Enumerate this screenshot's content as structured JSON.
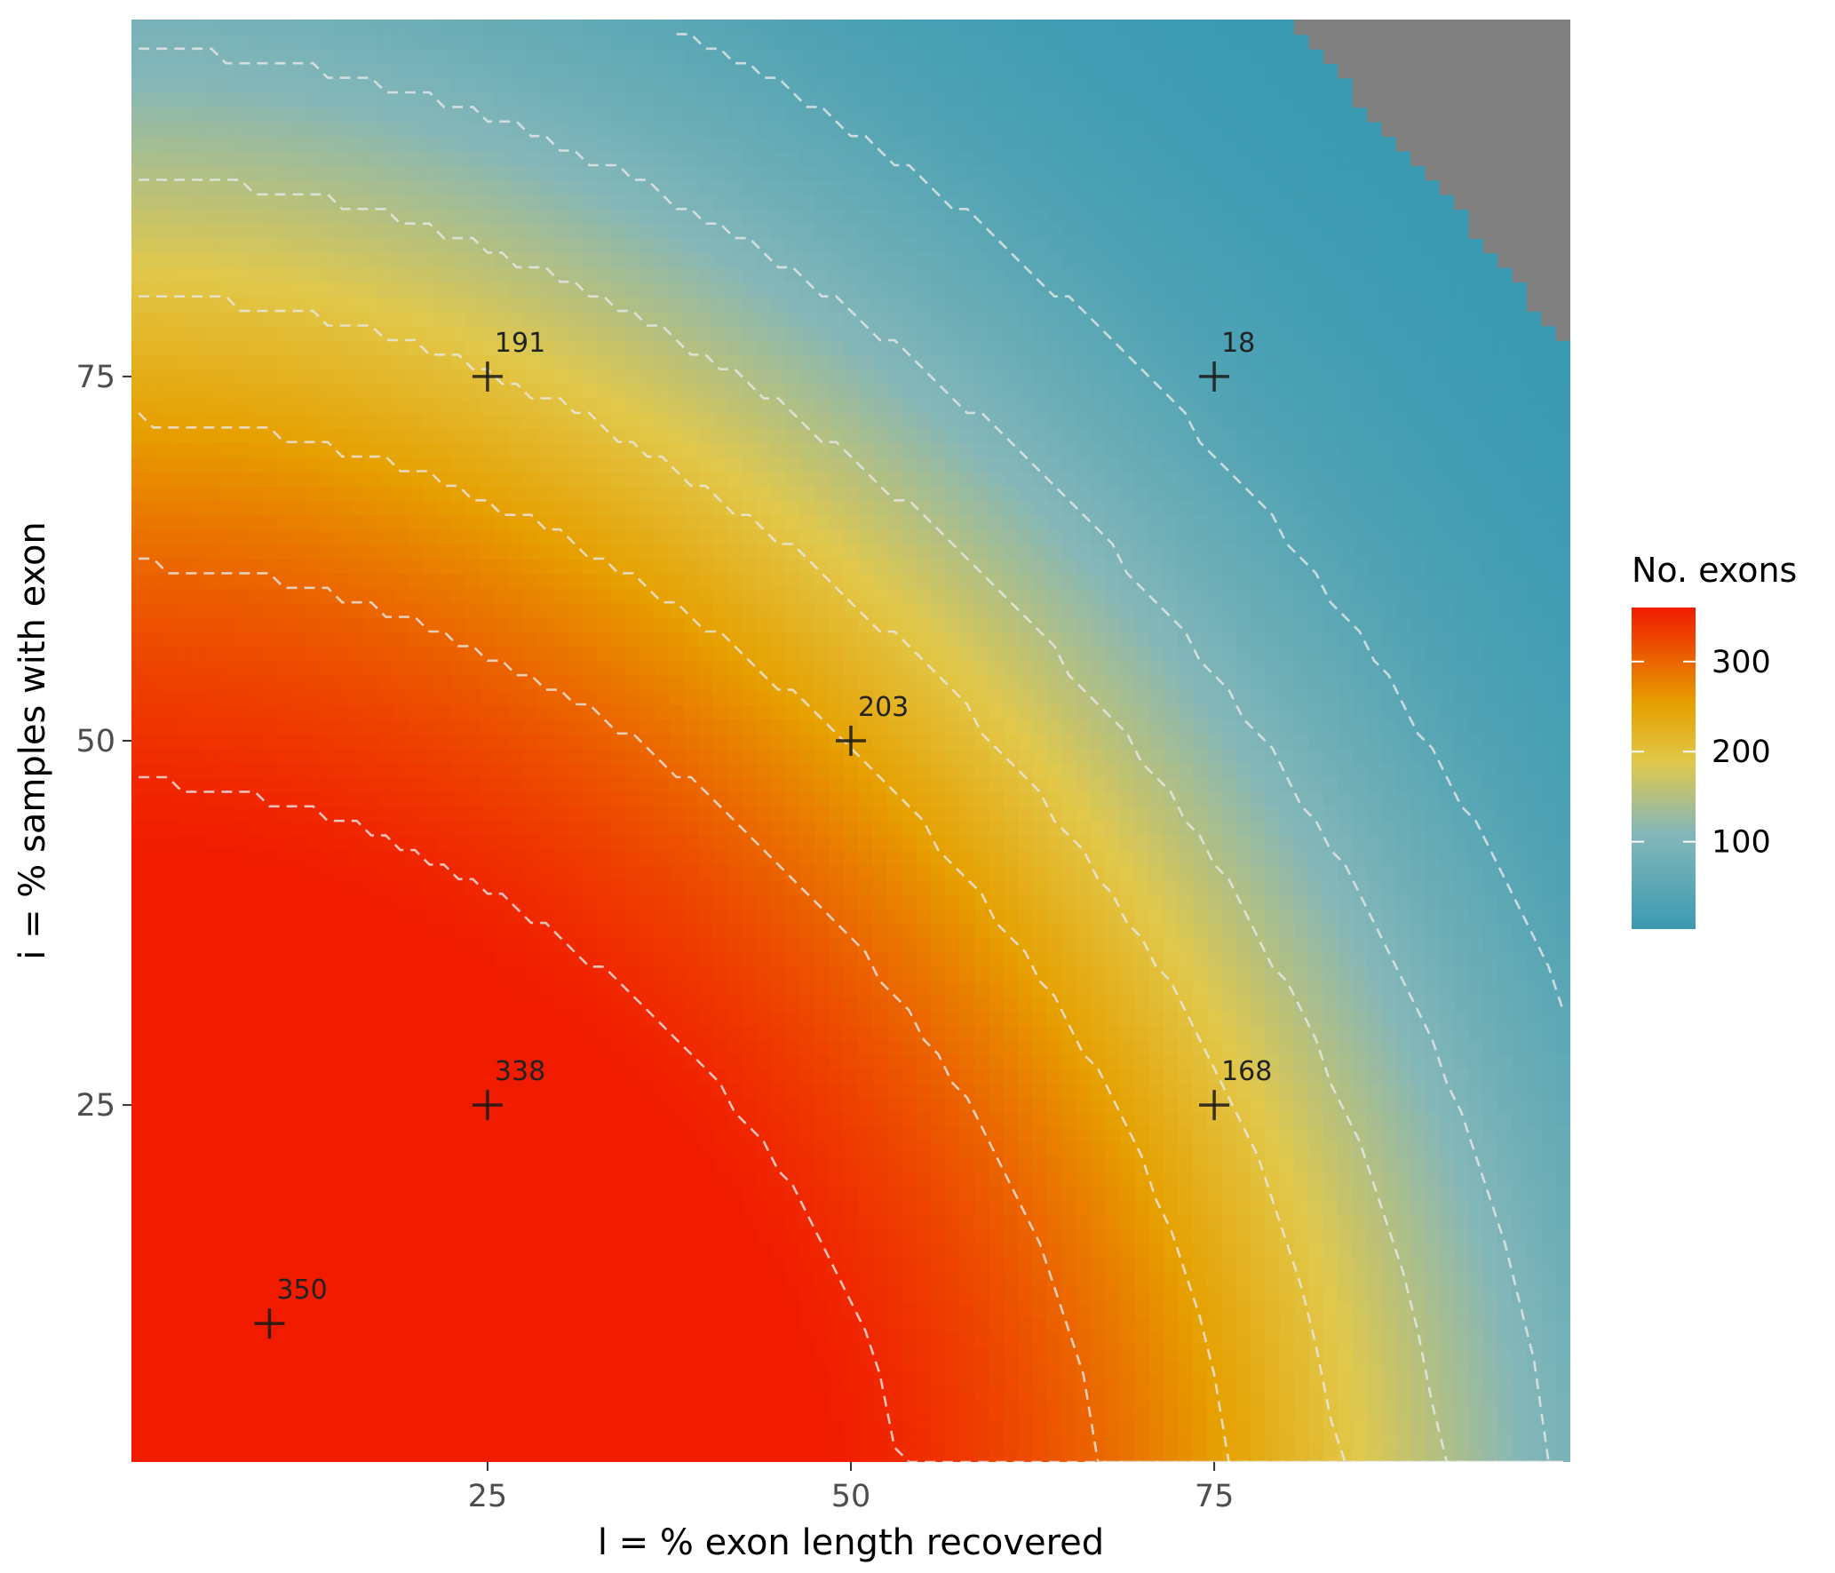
{
  "chart_data": {
    "type": "heatmap",
    "xlabel": "l = % exon length recovered",
    "ylabel": "i = % samples with exon",
    "x_ticks": [
      25,
      50,
      75
    ],
    "y_ticks": [
      25,
      50,
      75
    ],
    "xlim": [
      0.5,
      99.5
    ],
    "ylim": [
      0.5,
      99.5
    ],
    "grid": false,
    "legend": {
      "title": "No. exons",
      "position": "right",
      "ticks": [
        100,
        200,
        300
      ],
      "range": [
        3,
        360
      ]
    },
    "colors": {
      "low": "#3a9ab2",
      "mid_low": "#85b7b9",
      "mid": "#e1c84b",
      "mid_high": "#e6a000",
      "high": "#f11b00",
      "missing": "#808080",
      "contour": "#e8e8e8",
      "marker": "#1a1a1a"
    },
    "contour_levels": [
      50,
      100,
      150,
      200,
      250,
      300,
      350
    ],
    "annotations": [
      {
        "x": 10,
        "y": 10,
        "label": "350"
      },
      {
        "x": 25,
        "y": 25,
        "label": "338"
      },
      {
        "x": 75,
        "y": 25,
        "label": "168"
      },
      {
        "x": 50,
        "y": 50,
        "label": "203"
      },
      {
        "x": 25,
        "y": 75,
        "label": "191"
      },
      {
        "x": 75,
        "y": 75,
        "label": "18"
      }
    ]
  }
}
